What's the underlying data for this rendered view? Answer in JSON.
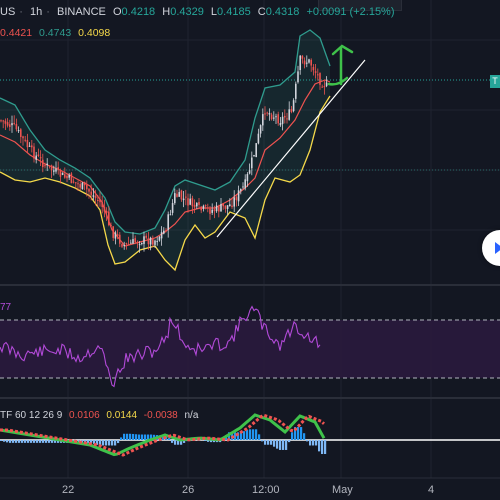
{
  "header": {
    "symbol_fragment": "US",
    "interval": "1h",
    "exchange": "BINANCE",
    "ohlc": {
      "o_label": "O",
      "o_value": "0.4218",
      "h_label": "H",
      "h_value": "0.4329",
      "l_label": "L",
      "l_value": "0.4185",
      "c_label": "C",
      "c_value": "0.4318",
      "change": "+0.0091 (+2.15%)"
    },
    "bb_values": {
      "basis": "0.4421",
      "upper": "0.4743",
      "lower": "0.4098"
    }
  },
  "price_badge": "T",
  "rsi_panel": {
    "label_fragment": "77"
  },
  "macd_panel": {
    "label_fragment": "TF 60 12 26 9",
    "v1": "0.0106",
    "v2": "0.0144",
    "v3": "-0.0038",
    "v4": "n/a"
  },
  "x_axis": {
    "labels": [
      "22",
      "26",
      "12:00",
      "May",
      "4"
    ]
  },
  "colors": {
    "background": "#131722",
    "candle_up": "#d1d4dc",
    "candle_down": "#ef5350",
    "bb_basis": "#ef5350",
    "bb_upper": "#2f9c8e",
    "bb_lower": "#f5d94a",
    "rsi_line": "#b24ad8",
    "rsi_band": "#2a1a3d",
    "trendline": "#ffffff",
    "arrow": "#3fc24a",
    "change_green": "#26a69a",
    "macd_red": "#ef5350",
    "macd_yellow": "#f5d94a"
  },
  "icons": {
    "scroll_button": "chevron-right-icon"
  }
}
